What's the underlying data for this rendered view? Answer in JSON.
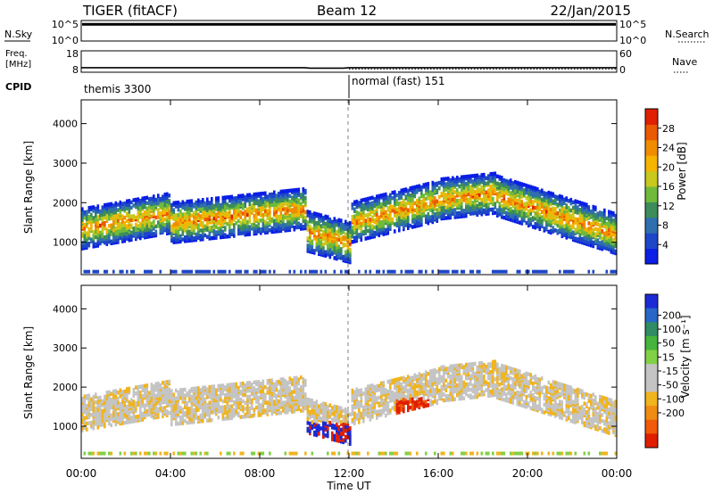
{
  "header": {
    "radar": "TIGER (fitACF)",
    "beam": "Beam 12",
    "date": "22/Jan/2015"
  },
  "strip_panels": {
    "nsky": {
      "label": "N.Sky",
      "ticks": [
        "10^5",
        "10^0"
      ],
      "right_label": "N.Search",
      "right_ticks": [
        "10^5",
        "10^0"
      ],
      "level_fraction": 0.88
    },
    "freq": {
      "label_line1": "Freq.",
      "label_line2": "[MHz]",
      "ticks": [
        "18",
        "8"
      ],
      "right_ticks": [
        "60",
        "0"
      ],
      "right_label": "Nave",
      "freq_mhz": 10.1
    },
    "cpid": {
      "label": "CPID",
      "segments": [
        {
          "name": "themis 3300",
          "start_hour": 0,
          "end_hour": 12
        },
        {
          "name": "normal (fast) 151",
          "start_hour": 12,
          "end_hour": 24
        }
      ]
    }
  },
  "chart_data": [
    {
      "type": "heatmap",
      "name": "power",
      "ylabel": "Slant Range [km]",
      "ylim": [
        180,
        4600
      ],
      "yticks": [
        "1000",
        "2000",
        "3000",
        "4000"
      ],
      "colorbar": {
        "label": "Power [dB]",
        "range": [
          0,
          32
        ],
        "ticks": [
          "4",
          "8",
          "12",
          "16",
          "20",
          "24",
          "28"
        ],
        "colors": [
          "#0a1ee6",
          "#1e46c8",
          "#2f6fae",
          "#3d8c5a",
          "#6fba3a",
          "#c8c81e",
          "#f5b400",
          "#f08c00",
          "#ea5a00",
          "#e02000"
        ]
      }
    },
    {
      "type": "heatmap",
      "name": "velocity",
      "ylabel": "Slant Range [km]",
      "ylim": [
        180,
        4600
      ],
      "yticks": [
        "1000",
        "2000",
        "3000",
        "4000"
      ],
      "colorbar": {
        "label": "Velocity [m s⁻¹]",
        "ticks": [
          "200",
          "100",
          "50",
          "15",
          "-15",
          "-50",
          "-100",
          "-200"
        ],
        "colors": [
          "#1c2ad6",
          "#2866c8",
          "#2f8c64",
          "#46b43c",
          "#82d046",
          "#c4c4c4",
          "#c4c4c4",
          "#f0b41e",
          "#f08c14",
          "#f05a0a",
          "#e01e00"
        ]
      }
    }
  ],
  "xaxis": {
    "label": "Time UT",
    "ticks": [
      "00:00",
      "04:00",
      "08:00",
      "12:00",
      "16:00",
      "20:00",
      "00:00"
    ],
    "xlim_hours": [
      0,
      24
    ]
  }
}
